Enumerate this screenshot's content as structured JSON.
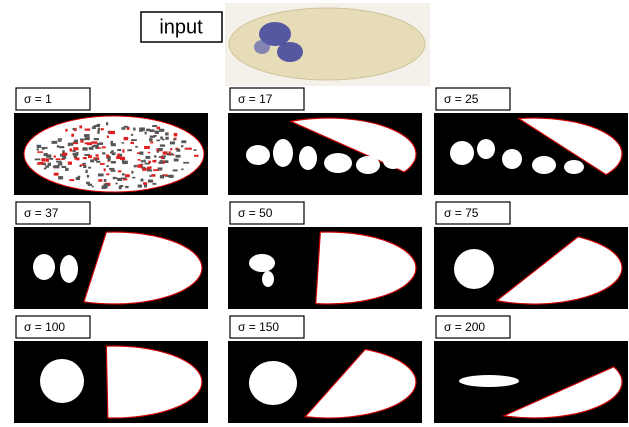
{
  "input_label": "input",
  "panels": [
    {
      "label": "σ  = 1"
    },
    {
      "label": "σ  = 17"
    },
    {
      "label": "σ  = 25"
    },
    {
      "label": "σ  = 37"
    },
    {
      "label": "σ  = 50"
    },
    {
      "label": "σ  = 75"
    },
    {
      "label": "σ  = 100"
    },
    {
      "label": "σ  = 150"
    },
    {
      "label": "σ  = 200"
    }
  ]
}
